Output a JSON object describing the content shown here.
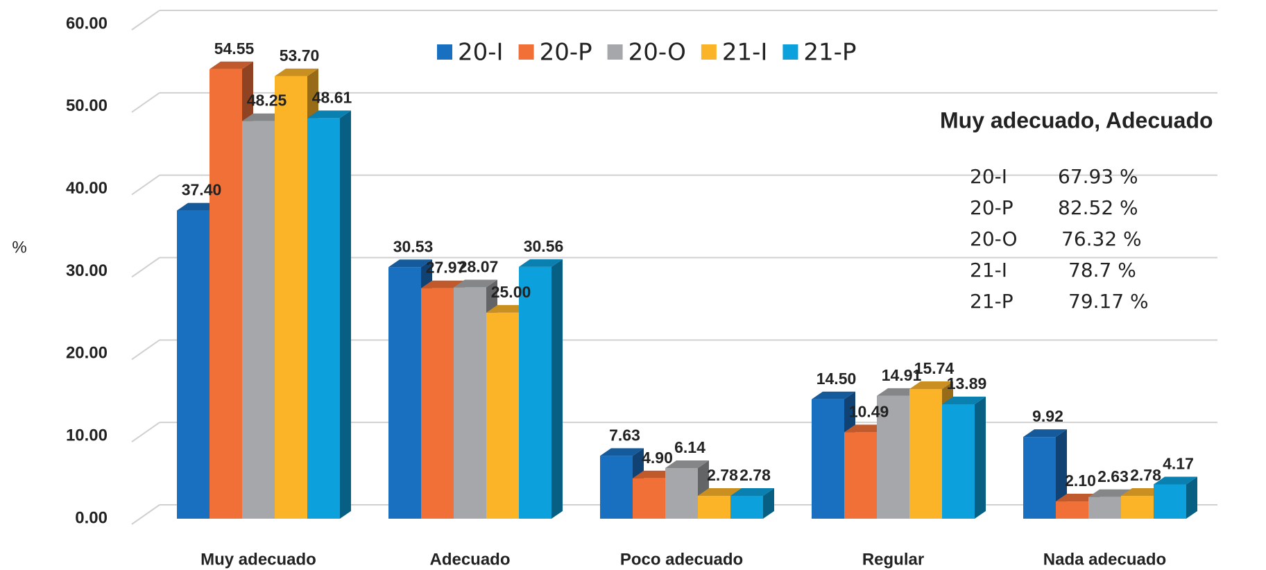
{
  "chart_data": {
    "type": "bar3d",
    "y_label": "%",
    "categories": [
      "Muy adecuado",
      "Adecuado",
      "Poco adecuado",
      "Regular",
      "Nada adecuado"
    ],
    "series": [
      {
        "name": "20-I",
        "color": "#1a70c0",
        "values": [
          37.4,
          30.53,
          7.63,
          14.5,
          9.92
        ],
        "value_labels": [
          "37.40",
          "30.53",
          "7.63",
          "14.50",
          "9.92"
        ]
      },
      {
        "name": "20-P",
        "color": "#f07038",
        "values": [
          54.55,
          27.97,
          4.9,
          10.49,
          2.1
        ],
        "value_labels": [
          "54.55",
          "27.97",
          "4.90",
          "10.49",
          "2.10"
        ]
      },
      {
        "name": "20-O",
        "color": "#a5a7aa",
        "values": [
          48.25,
          28.07,
          6.14,
          14.91,
          2.63
        ],
        "value_labels": [
          "48.25",
          "28.07",
          "6.14",
          "14.91",
          "2.63"
        ]
      },
      {
        "name": "21-I",
        "color": "#fbb328",
        "values": [
          53.7,
          25.0,
          2.78,
          15.74,
          2.78
        ],
        "value_labels": [
          "53.70",
          "25.00",
          "2.78",
          "15.74",
          "2.78"
        ]
      },
      {
        "name": "21-P",
        "color": "#0ca0dc",
        "values": [
          48.61,
          30.56,
          2.78,
          13.89,
          4.17
        ],
        "value_labels": [
          "48.61",
          "30.56",
          "2.78",
          "13.89",
          "4.17"
        ]
      }
    ],
    "ylim": [
      0,
      60
    ],
    "yticks": [
      {
        "value": 0,
        "label": "0.00"
      },
      {
        "value": 10,
        "label": "10.00"
      },
      {
        "value": 20,
        "label": "20.00"
      },
      {
        "value": 30,
        "label": "30.00"
      },
      {
        "value": 40,
        "label": "40.00"
      },
      {
        "value": 50,
        "label": "50.00"
      },
      {
        "value": 60,
        "label": "60.00"
      }
    ],
    "grid": true,
    "legend": "top",
    "annotation": {
      "title": "Muy adecuado, Adecuado",
      "rows": [
        [
          "20-I",
          "67.93 %"
        ],
        [
          "20-P",
          "82.52 %"
        ],
        [
          "20-O",
          "76.32 %"
        ],
        [
          "21-I",
          "78.7 %"
        ],
        [
          "21-P",
          "79.17 %"
        ]
      ]
    }
  }
}
